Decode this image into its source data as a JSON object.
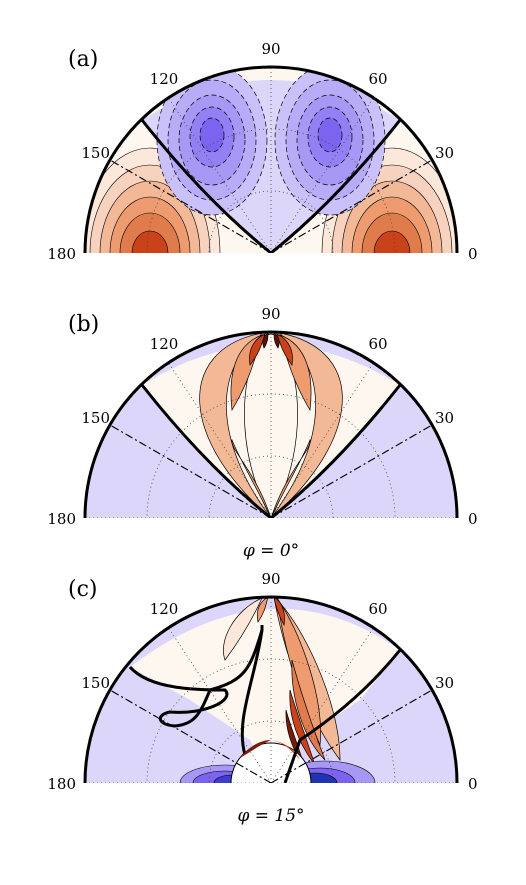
{
  "panels": [
    {
      "label": "(a)",
      "angle_ticks": [
        "180",
        "150",
        "120",
        "90",
        "60",
        "30",
        "0"
      ],
      "caption": ""
    },
    {
      "label": "(b)",
      "angle_ticks": [
        "180",
        "150",
        "120",
        "90",
        "60",
        "30",
        "0"
      ],
      "caption": "φ = 0°"
    },
    {
      "label": "(c)",
      "angle_ticks": [
        "180",
        "150",
        "120",
        "90",
        "60",
        "30",
        "0"
      ],
      "caption": "φ = 15°"
    }
  ],
  "colors": {
    "negative_light": "#ddd6fb",
    "negative_mid": "#a898f6",
    "negative_strong": "#7c63f0",
    "positive_light": "#f7d3bf",
    "positive_mid": "#ee9c6f",
    "positive_strong": "#c9421a",
    "cream": "#fdf7ef",
    "deep_blue": "#1f34b5"
  }
}
